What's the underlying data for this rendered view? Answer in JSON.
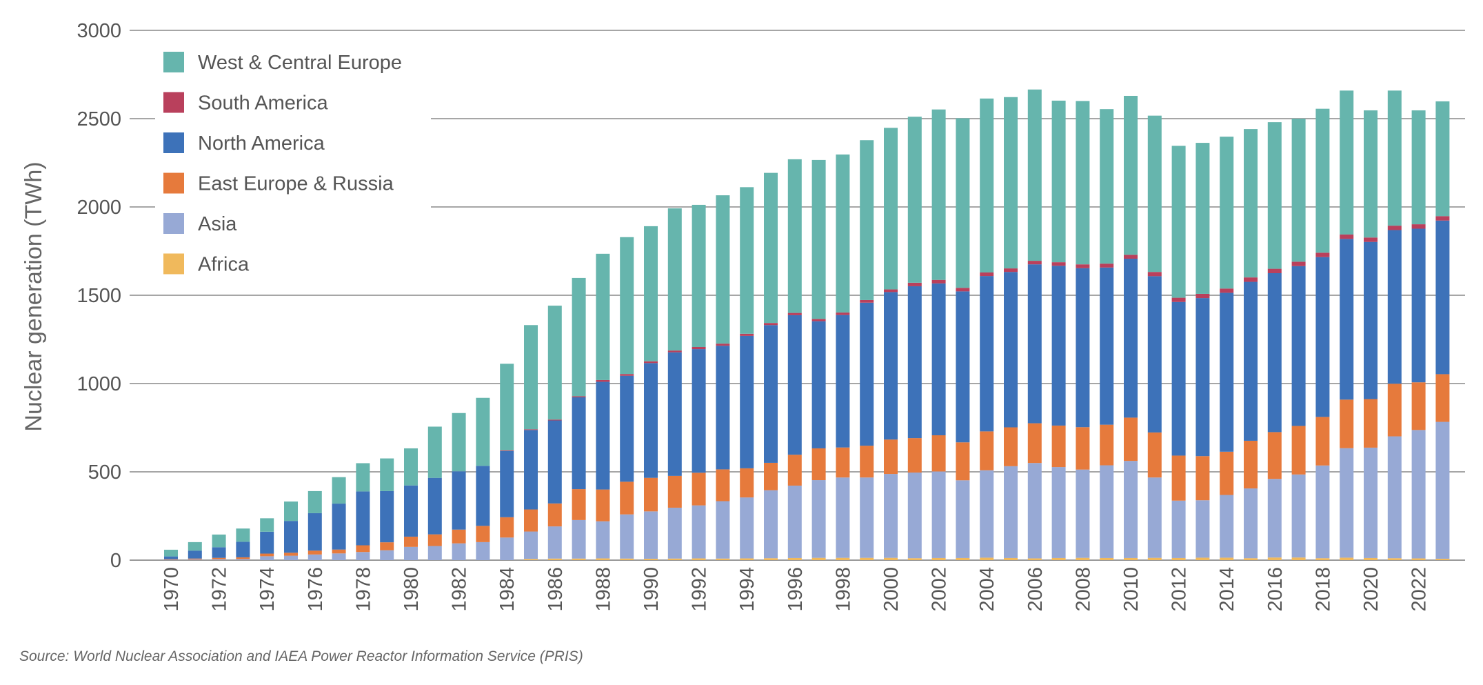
{
  "chart_data": {
    "type": "bar",
    "stacked": true,
    "ylabel": "Nuclear generation (TWh)",
    "xlabel": "",
    "ylim": [
      0,
      3000
    ],
    "yticks": [
      0,
      500,
      1000,
      1500,
      2000,
      2500,
      3000
    ],
    "grid": "horizontal",
    "legend_position": "top-left",
    "categories": [
      1970,
      1971,
      1972,
      1973,
      1974,
      1975,
      1976,
      1977,
      1978,
      1979,
      1980,
      1981,
      1982,
      1983,
      1984,
      1985,
      1986,
      1987,
      1988,
      1989,
      1990,
      1991,
      1992,
      1993,
      1994,
      1995,
      1996,
      1997,
      1998,
      1999,
      2000,
      2001,
      2002,
      2003,
      2004,
      2005,
      2006,
      2007,
      2008,
      2009,
      2010,
      2011,
      2012,
      2013,
      2014,
      2015,
      2016,
      2017,
      2018,
      2019,
      2020,
      2021,
      2022,
      2023
    ],
    "xtick_labels": [
      "1970",
      "1972",
      "1974",
      "1976",
      "1978",
      "1980",
      "1982",
      "1984",
      "1986",
      "1988",
      "1990",
      "1992",
      "1994",
      "1996",
      "1998",
      "2000",
      "2002",
      "2004",
      "2006",
      "2008",
      "2010",
      "2012",
      "2014",
      "2016",
      "2018",
      "2020",
      "2022"
    ],
    "series": [
      {
        "name": "Africa",
        "color": "#f0b95c",
        "values": [
          0,
          0,
          0,
          0,
          0,
          0,
          0,
          0,
          0,
          0,
          0,
          0,
          0,
          0,
          0,
          7,
          9,
          9,
          10,
          9,
          8,
          9,
          10,
          9,
          10,
          11,
          12,
          13,
          13,
          13,
          13,
          11,
          12,
          12,
          14,
          12,
          10,
          12,
          13,
          12,
          12,
          13,
          12,
          14,
          14,
          11,
          15,
          15,
          11,
          14,
          12,
          11,
          10,
          8
        ]
      },
      {
        "name": "Asia",
        "color": "#97a9d5",
        "values": [
          3,
          4,
          5,
          6,
          22,
          25,
          32,
          38,
          46,
          56,
          75,
          80,
          95,
          102,
          128,
          155,
          182,
          218,
          210,
          250,
          268,
          288,
          300,
          325,
          345,
          385,
          410,
          440,
          455,
          455,
          475,
          485,
          490,
          440,
          495,
          520,
          540,
          515,
          500,
          525,
          550,
          455,
          325,
          325,
          355,
          395,
          445,
          470,
          525,
          620,
          625,
          690,
          727,
          775
        ]
      },
      {
        "name": "East Europe & Russia",
        "color": "#e67a3c",
        "values": [
          3,
          5,
          8,
          10,
          15,
          17,
          22,
          22,
          38,
          45,
          58,
          66,
          78,
          92,
          115,
          125,
          130,
          175,
          180,
          185,
          190,
          180,
          185,
          180,
          165,
          155,
          175,
          180,
          170,
          180,
          195,
          195,
          205,
          215,
          220,
          220,
          225,
          235,
          240,
          230,
          245,
          255,
          255,
          250,
          245,
          270,
          265,
          275,
          275,
          275,
          275,
          298,
          270,
          270
        ]
      },
      {
        "name": "North America",
        "color": "#3d72b9",
        "values": [
          15,
          45,
          60,
          88,
          124,
          180,
          212,
          260,
          305,
          290,
          290,
          320,
          330,
          340,
          375,
          450,
          470,
          520,
          610,
          600,
          650,
          700,
          700,
          700,
          750,
          780,
          790,
          720,
          750,
          810,
          835,
          860,
          860,
          855,
          880,
          880,
          900,
          905,
          900,
          890,
          900,
          885,
          870,
          895,
          900,
          900,
          900,
          905,
          905,
          910,
          890,
          870,
          870,
          870
        ]
      },
      {
        "name": "South America",
        "color": "#b9405c",
        "values": [
          0,
          0,
          0,
          0,
          0,
          0,
          0,
          0,
          0,
          0,
          0,
          0,
          0,
          0,
          4,
          4,
          5,
          6,
          10,
          10,
          10,
          10,
          12,
          12,
          12,
          12,
          13,
          13,
          14,
          15,
          15,
          20,
          20,
          20,
          20,
          20,
          20,
          20,
          22,
          22,
          22,
          24,
          24,
          24,
          24,
          25,
          25,
          25,
          25,
          25,
          25,
          25,
          25,
          25
        ]
      },
      {
        "name": "West & Central Europe",
        "color": "#66b5ad",
        "values": [
          38,
          48,
          72,
          75,
          76,
          110,
          125,
          150,
          160,
          185,
          210,
          290,
          330,
          385,
          490,
          590,
          645,
          670,
          715,
          775,
          765,
          805,
          805,
          840,
          830,
          850,
          870,
          900,
          895,
          905,
          915,
          940,
          965,
          960,
          985,
          970,
          970,
          915,
          925,
          875,
          900,
          885,
          860,
          855,
          860,
          840,
          830,
          810,
          815,
          815,
          720,
          765,
          645,
          650
        ]
      }
    ]
  },
  "source_text": "Source: World Nuclear Association and IAEA Power Reactor Information Service (PRIS)"
}
